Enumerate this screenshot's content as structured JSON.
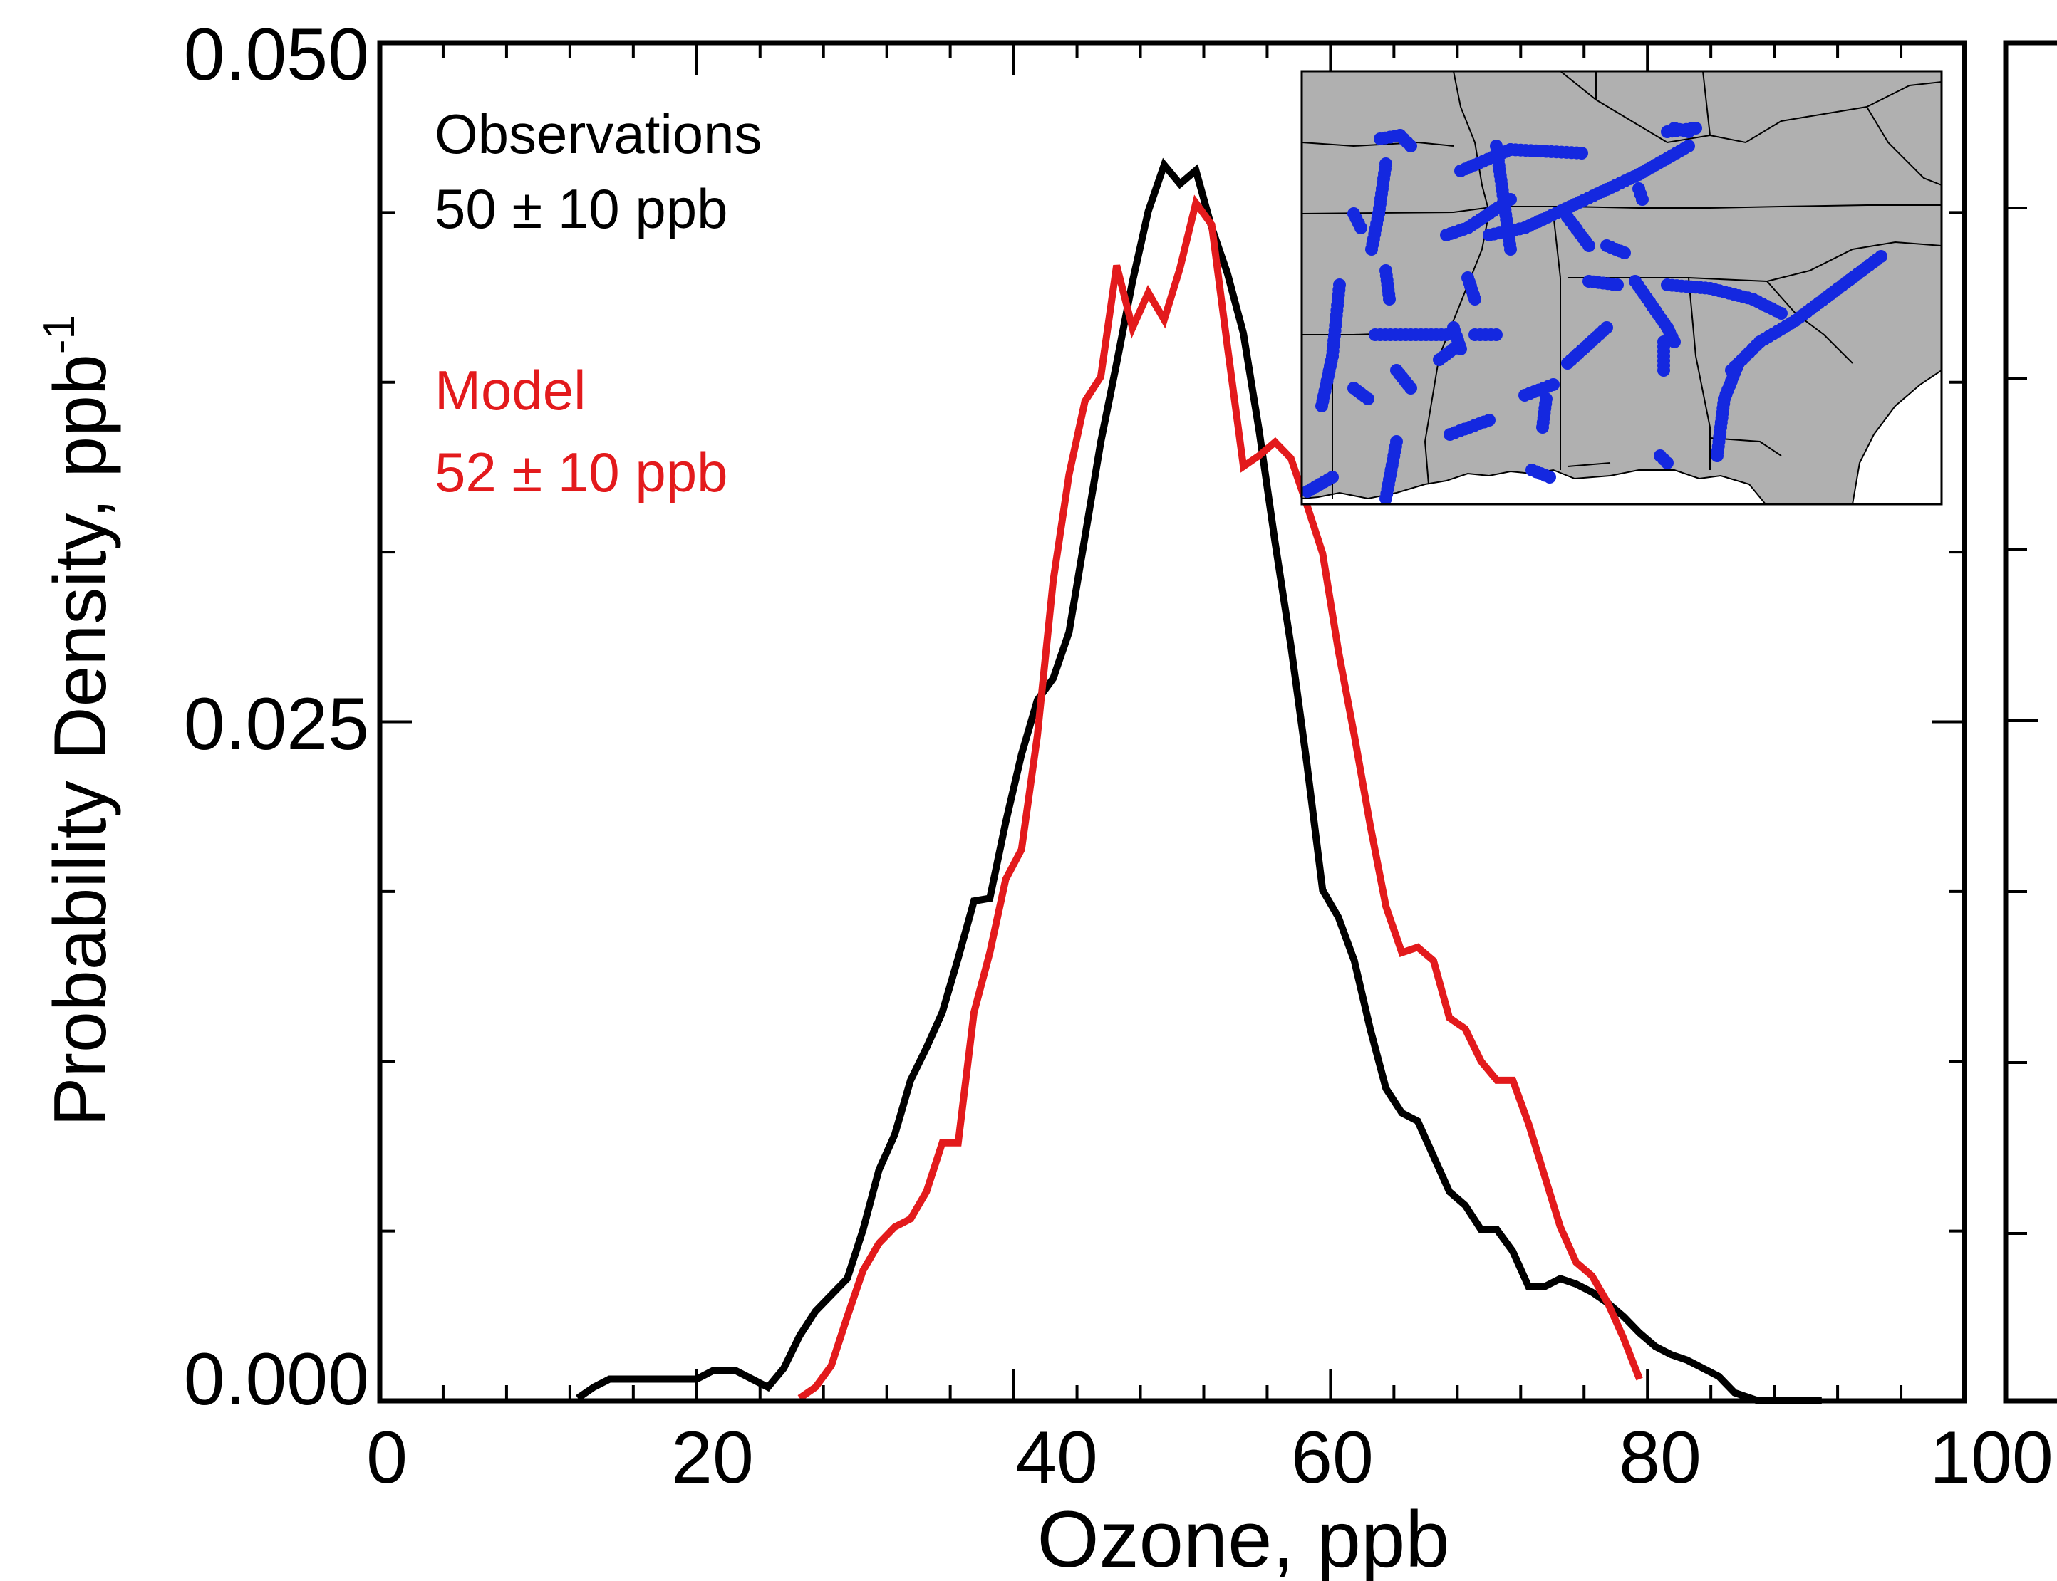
{
  "colors": {
    "observations": "#000000",
    "model": "#e31a1c",
    "map_land": "#b0b0b0",
    "map_points": "#1428e0"
  },
  "chart_data": {
    "type": "line",
    "xlabel": "Ozone, ppb",
    "ylabel": "Probability Density, ppb",
    "ylabel_sup": "-1",
    "xlim": [
      0,
      100
    ],
    "ylim": [
      0,
      0.05
    ],
    "x_ticks": [
      "0",
      "20",
      "40",
      "60",
      "80",
      "100"
    ],
    "y_ticks": [
      "0.000",
      "0.025",
      "0.050"
    ],
    "grid": false,
    "series": [
      {
        "name": "Observations",
        "stats": "50 ± 10 ppb",
        "color": "#000000",
        "x": [
          12.5,
          13.5,
          14.5,
          16,
          18,
          20,
          21,
          22.5,
          23.5,
          24.5,
          25.5,
          26.5,
          27.5,
          28.5,
          29.5,
          30.5,
          31.5,
          32.5,
          33.5,
          34.5,
          35.5,
          36.5,
          37.5,
          38.5,
          39.5,
          40.5,
          41.5,
          42.5,
          43.5,
          44.5,
          45.5,
          46.5,
          47.5,
          48.5,
          49.5,
          50.5,
          51.5,
          52.5,
          53.5,
          54.5,
          55.5,
          56.5,
          57.5,
          58.5,
          59.5,
          60.5,
          61.5,
          62.5,
          63.5,
          64.5,
          65.5,
          66.5,
          67.5,
          68.5,
          69.5,
          70.5,
          71.5,
          72.5,
          73.5,
          74.5,
          75.5,
          76.5,
          77.5,
          78.5,
          79.5,
          80.5,
          81.5,
          82.5,
          83.5,
          84.5,
          85.5,
          87,
          89,
          91
        ],
        "y": [
          0.0001,
          0.0005,
          0.0008,
          0.0008,
          0.0008,
          0.0008,
          0.0011,
          0.0011,
          0.0008,
          0.0005,
          0.0012,
          0.0024,
          0.0033,
          0.0039,
          0.0045,
          0.0063,
          0.0085,
          0.0098,
          0.0118,
          0.013,
          0.0143,
          0.0163,
          0.0184,
          0.0185,
          0.0213,
          0.0238,
          0.0258,
          0.0266,
          0.0283,
          0.0318,
          0.0353,
          0.0382,
          0.0412,
          0.0438,
          0.0455,
          0.0448,
          0.0453,
          0.0432,
          0.0415,
          0.0393,
          0.0357,
          0.0316,
          0.0278,
          0.0235,
          0.0188,
          0.0178,
          0.0162,
          0.0137,
          0.0115,
          0.0106,
          0.0103,
          0.009,
          0.0077,
          0.0072,
          0.0063,
          0.0063,
          0.0055,
          0.0042,
          0.0042,
          0.0045,
          0.0043,
          0.004,
          0.0036,
          0.0031,
          0.0025,
          0.002,
          0.0017,
          0.0015,
          0.0012,
          0.0009,
          0.0003,
          0.0,
          0.0,
          0.0
        ]
      },
      {
        "name": "Model",
        "stats": "52 ± 10 ppb",
        "color": "#e31a1c",
        "x": [
          26.5,
          27.5,
          28.5,
          29.5,
          30.5,
          31.5,
          32.5,
          33.5,
          34.5,
          35.5,
          36.5,
          37.5,
          38.5,
          39.5,
          40.5,
          41.5,
          42.5,
          43.5,
          44.5,
          45.5,
          46.5,
          47.5,
          48.5,
          49.5,
          50.5,
          51.5,
          52.5,
          53.5,
          54.5,
          55.5,
          56.5,
          57.5,
          58.5,
          59.5,
          60.5,
          61.5,
          62.5,
          63.5,
          64.5,
          65.5,
          66.5,
          67.5,
          68.5,
          69.5,
          70.5,
          71.5,
          72.5,
          73.5,
          74.5,
          75.5,
          76.5,
          77.5,
          78.5,
          79.5
        ],
        "y": [
          0.0001,
          0.0005,
          0.0013,
          0.0031,
          0.0048,
          0.0058,
          0.0064,
          0.0067,
          0.0077,
          0.0095,
          0.0095,
          0.0143,
          0.0165,
          0.0192,
          0.0203,
          0.0245,
          0.0302,
          0.0341,
          0.0368,
          0.0377,
          0.0418,
          0.0395,
          0.0408,
          0.0398,
          0.0417,
          0.0441,
          0.0433,
          0.0388,
          0.0344,
          0.0348,
          0.0353,
          0.0347,
          0.033,
          0.0312,
          0.0276,
          0.0245,
          0.0212,
          0.0182,
          0.0165,
          0.0167,
          0.0162,
          0.0141,
          0.0137,
          0.0125,
          0.0118,
          0.0118,
          0.0102,
          0.0083,
          0.0064,
          0.0051,
          0.0046,
          0.0036,
          0.0023,
          0.0008
        ]
      }
    ],
    "annotations": {
      "legend_placement": "top-left",
      "inset": "map of the southeastern United States with observation flight tracks"
    }
  }
}
